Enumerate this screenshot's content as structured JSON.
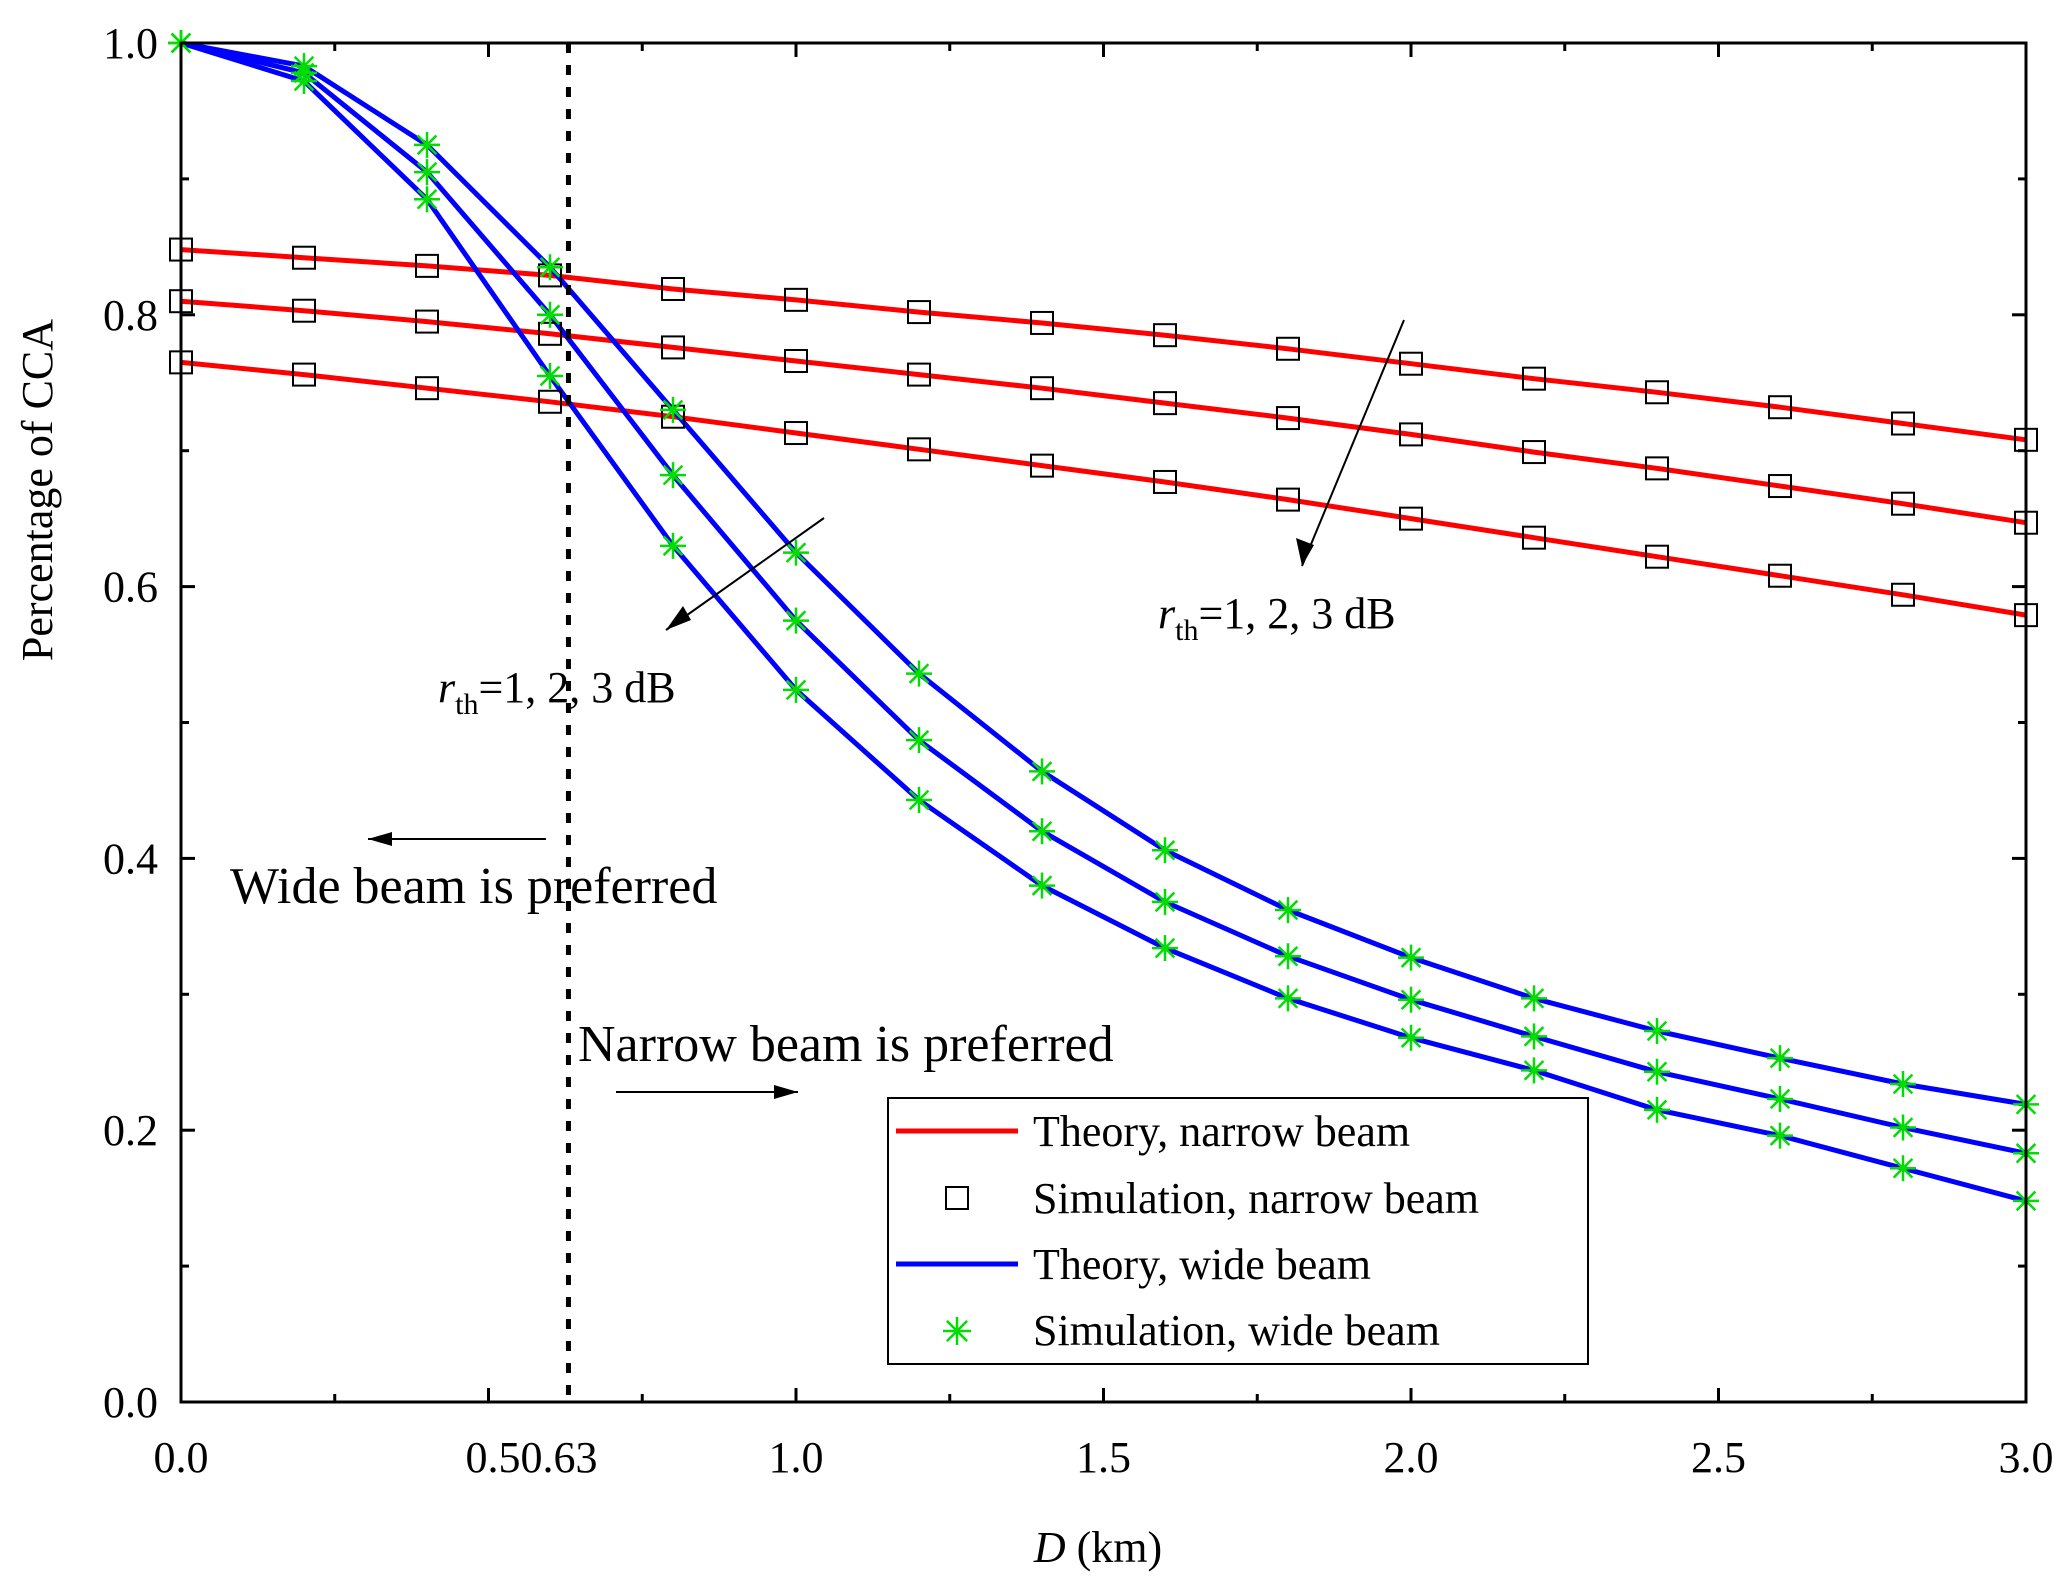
{
  "chart_data": {
    "type": "line",
    "title": "",
    "xlabel": {
      "italic": "D",
      "rest": " (km)"
    },
    "ylabel": "Percentage of CCA",
    "xlim": [
      0,
      3
    ],
    "ylim": [
      0,
      1
    ],
    "xticks": [
      {
        "value": 0,
        "label": "0.0"
      },
      {
        "value": 0.5,
        "label": "0.5"
      },
      {
        "value": 0.63,
        "label": "0.63"
      },
      {
        "value": 1.0,
        "label": "1.0"
      },
      {
        "value": 1.5,
        "label": "1.5"
      },
      {
        "value": 2.0,
        "label": "2.0"
      },
      {
        "value": 2.5,
        "label": "2.5"
      },
      {
        "value": 3.0,
        "label": "3.0"
      }
    ],
    "yticks": [
      {
        "value": 0,
        "label": "0.0"
      },
      {
        "value": 0.2,
        "label": "0.2"
      },
      {
        "value": 0.4,
        "label": "0.4"
      },
      {
        "value": 0.6,
        "label": "0.6"
      },
      {
        "value": 0.8,
        "label": "0.8"
      },
      {
        "value": 1.0,
        "label": "1.0"
      }
    ],
    "threshold_x": 0.63,
    "x": [
      0,
      0.2,
      0.4,
      0.6,
      0.8,
      1.0,
      1.2,
      1.4,
      1.6,
      1.8,
      2.0,
      2.2,
      2.4,
      2.6,
      2.8,
      3.0
    ],
    "series": [
      {
        "name": "Theory, narrow beam (r_th=1 dB)",
        "kind": "narrow",
        "values": [
          0.848,
          0.842,
          0.836,
          0.829,
          0.819,
          0.811,
          0.802,
          0.794,
          0.785,
          0.775,
          0.764,
          0.753,
          0.743,
          0.732,
          0.72,
          0.708
        ]
      },
      {
        "name": "Theory, narrow beam (r_th=2 dB)",
        "kind": "narrow",
        "values": [
          0.81,
          0.803,
          0.795,
          0.786,
          0.776,
          0.766,
          0.756,
          0.746,
          0.735,
          0.724,
          0.712,
          0.699,
          0.687,
          0.674,
          0.661,
          0.647
        ]
      },
      {
        "name": "Theory, narrow beam (r_th=3 dB)",
        "kind": "narrow",
        "values": [
          0.765,
          0.756,
          0.746,
          0.736,
          0.725,
          0.713,
          0.701,
          0.689,
          0.677,
          0.664,
          0.65,
          0.636,
          0.622,
          0.608,
          0.594,
          0.579
        ]
      },
      {
        "name": "Theory, wide beam (r_th=1 dB)",
        "kind": "wide",
        "values": [
          1.0,
          0.983,
          0.925,
          0.835,
          0.73,
          0.625,
          0.536,
          0.464,
          0.406,
          0.362,
          0.327,
          0.297,
          0.273,
          0.253,
          0.234,
          0.219
        ]
      },
      {
        "name": "Theory, wide beam (r_th=2 dB)",
        "kind": "wide",
        "values": [
          1.0,
          0.978,
          0.905,
          0.8,
          0.682,
          0.575,
          0.487,
          0.42,
          0.368,
          0.328,
          0.296,
          0.269,
          0.243,
          0.223,
          0.202,
          0.183
        ]
      },
      {
        "name": "Theory, wide beam (r_th=3 dB)",
        "kind": "wide",
        "values": [
          1.0,
          0.972,
          0.885,
          0.755,
          0.63,
          0.524,
          0.443,
          0.38,
          0.334,
          0.297,
          0.268,
          0.244,
          0.215,
          0.196,
          0.172,
          0.148
        ]
      }
    ],
    "legend": {
      "position": "bottom-right",
      "entries": [
        {
          "label": "Theory, narrow beam",
          "style": "line",
          "color": "#ff0000"
        },
        {
          "label": "Simulation, narrow beam",
          "style": "square",
          "color": "#000000"
        },
        {
          "label": "Theory, wide beam",
          "style": "line",
          "color": "#0000ff"
        },
        {
          "label": "Simulation, wide beam",
          "style": "asterisk",
          "color": "#00dd00"
        }
      ]
    },
    "annotations": {
      "rth_narrow": {
        "r": "r",
        "sub": "th",
        "rest": "=1, 2, 3 dB"
      },
      "rth_wide": {
        "r": "r",
        "sub": "th",
        "rest": "=1, 2, 3 dB"
      },
      "wide_pref": "Wide beam is preferred",
      "narrow_pref": "Narrow beam is preferred"
    },
    "colors": {
      "narrow": "#ff0000",
      "wide": "#0000ff",
      "sim_narrow": "#000000",
      "sim_wide": "#00dd00"
    }
  }
}
